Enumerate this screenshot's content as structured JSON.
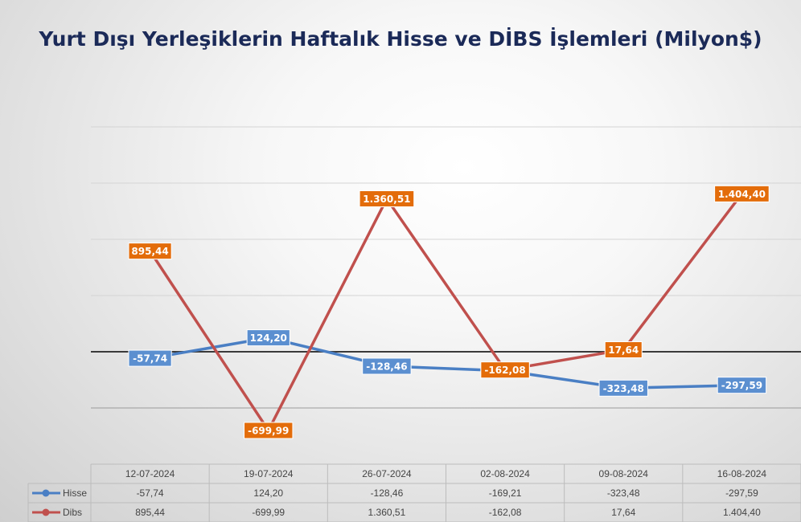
{
  "chart_data": {
    "type": "line",
    "title": "Yurt Dışı Yerleşiklerin Haftalık Hisse ve DİBS İşlemleri (Milyon$)",
    "categories": [
      "12-07-2024",
      "19-07-2024",
      "26-07-2024",
      "02-08-2024",
      "09-08-2024",
      "16-08-2024"
    ],
    "series": [
      {
        "name": "Hisse",
        "color": "#4a7fc4",
        "label_color": "#5b8fd0",
        "values": [
          -57.74,
          124.2,
          -128.46,
          -169.21,
          -323.48,
          -297.59
        ],
        "labels": [
          "-57,74",
          "124,20",
          "-128,46",
          "-169,21",
          "-323,48",
          "-297,59"
        ]
      },
      {
        "name": "Dibs",
        "color": "#c0504d",
        "label_color": "#e36c0a",
        "values": [
          895.44,
          -699.99,
          1360.51,
          -162.08,
          17.64,
          1404.4
        ],
        "labels": [
          "895,44",
          "-699,99",
          "1.360,51",
          "-162,08",
          "17,64",
          "1.404,40"
        ]
      }
    ],
    "ylim": [
      -1000,
      2000
    ],
    "grid": true,
    "legend": "data-table"
  }
}
